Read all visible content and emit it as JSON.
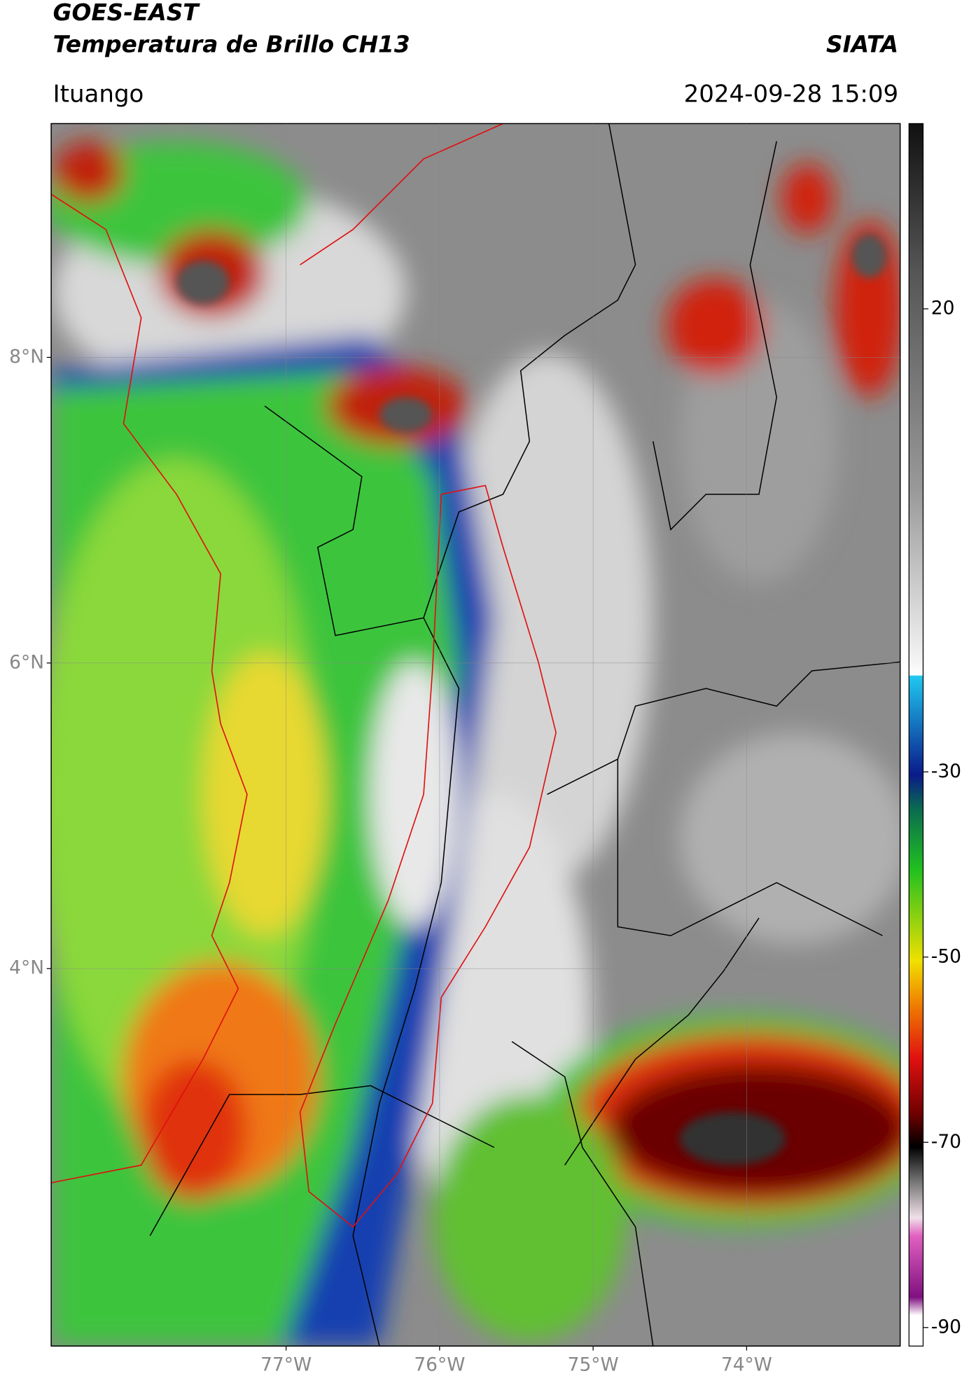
{
  "map": {
    "title": "GOES-EAST",
    "subtitle": "Temperatura de Brillo CH13",
    "source": "SIATA",
    "location": "Ituango",
    "datetime": "2024-09-28 15:09",
    "latlim": [
      9.53,
      1.53
    ],
    "lonlim": [
      -78.53,
      -73.0
    ],
    "latticks": [
      {
        "value": 8,
        "label": "8°N"
      },
      {
        "value": 6,
        "label": "6°N"
      },
      {
        "value": 4,
        "label": "4°N"
      }
    ],
    "lonticks": [
      {
        "value": -77,
        "label": "77°W"
      },
      {
        "value": -76,
        "label": "76°W"
      },
      {
        "value": -75,
        "label": "75°W"
      },
      {
        "value": -74,
        "label": "74°W"
      }
    ],
    "grid": true,
    "colorbar": {
      "lim": [
        40,
        -92
      ],
      "ticks": [
        20,
        -30,
        -50,
        -70,
        -90
      ]
    }
  }
}
